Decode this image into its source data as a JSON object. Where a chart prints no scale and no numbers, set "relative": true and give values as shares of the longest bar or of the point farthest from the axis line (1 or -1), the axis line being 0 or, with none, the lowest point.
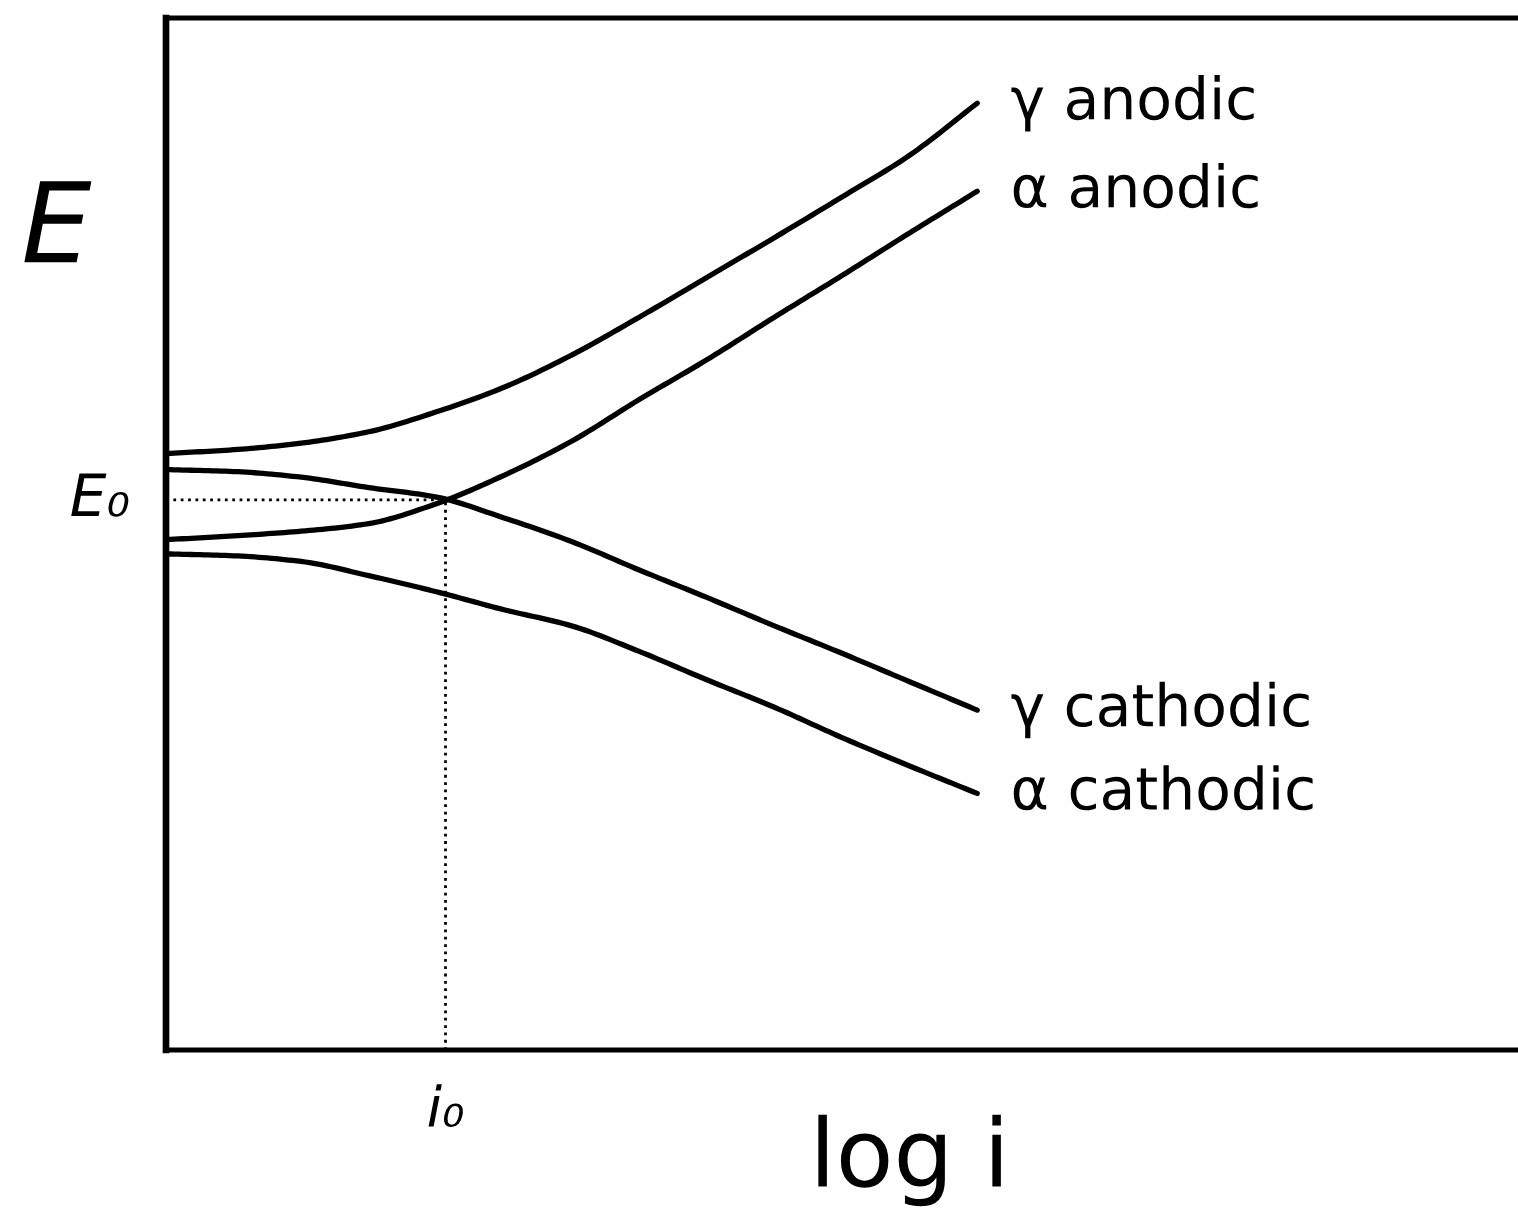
{
  "chart_data": {
    "type": "line",
    "relative": true,
    "xlabel": "log i",
    "ylabel": "E",
    "categories": [
      null,
      null,
      null,
      null,
      null,
      null,
      null,
      null,
      null,
      null,
      null,
      null,
      null,
      null,
      null,
      null,
      null,
      null,
      null,
      null,
      null
    ],
    "series": [
      {
        "name": "γ anodic",
        "color": "#000000",
        "values": [
          0.63,
          0.634,
          0.641,
          0.653,
          0.674,
          0.7,
          0.734,
          0.774,
          0.816,
          0.858,
          0.901,
          0.945,
          1.0,
          null,
          null,
          null,
          null,
          null,
          null,
          null,
          null
        ]
      },
      {
        "name": "α anodic",
        "color": "#000000",
        "values": [
          0.539,
          0.543,
          0.548,
          0.556,
          0.577,
          0.607,
          0.643,
          0.687,
          0.729,
          0.774,
          0.818,
          0.863,
          0.907,
          null,
          null,
          null,
          null,
          null,
          null,
          null,
          null
        ]
      },
      {
        "name": "γ cathodic",
        "color": "#000000",
        "values": [
          0.613,
          0.611,
          0.605,
          0.594,
          0.584,
          0.562,
          0.537,
          0.507,
          0.478,
          0.448,
          0.419,
          0.389,
          0.359,
          null,
          null,
          null,
          null,
          null,
          null,
          null,
          null
        ]
      },
      {
        "name": "α cathodic",
        "color": "#000000",
        "values": [
          0.524,
          0.522,
          0.516,
          0.501,
          0.484,
          0.465,
          0.448,
          0.421,
          0.391,
          0.362,
          0.33,
          0.3,
          0.271,
          null,
          null,
          null,
          null,
          null,
          null,
          null,
          null
        ]
      }
    ],
    "ref_lines": [
      {
        "axis": "y",
        "value": 0.581,
        "label": "E₀",
        "color": "#000000",
        "line_style": "dotted"
      }
    ],
    "annotations": [
      "i₀"
    ]
  }
}
